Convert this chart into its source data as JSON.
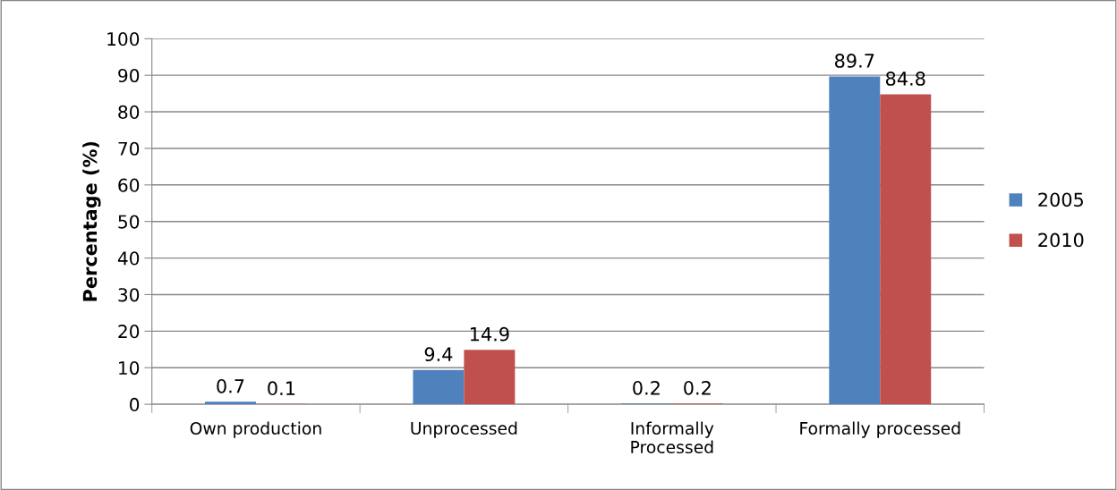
{
  "chart_data": {
    "type": "bar",
    "ylabel": "Percentage (%)",
    "categories": [
      "Own production",
      "Unprocessed",
      "Informally\nProcessed",
      "Formally processed"
    ],
    "series": [
      {
        "name": "2005",
        "color": "#4f81bd",
        "values": [
          0.7,
          9.4,
          0.2,
          89.7
        ]
      },
      {
        "name": "2010",
        "color": "#c0504d",
        "values": [
          0.1,
          14.9,
          0.2,
          84.8
        ]
      }
    ],
    "ylim": [
      0,
      100
    ],
    "yticks": [
      0,
      10,
      20,
      30,
      40,
      50,
      60,
      70,
      80,
      90,
      100
    ],
    "grid": "y",
    "legend": "right",
    "data_labels": true
  }
}
